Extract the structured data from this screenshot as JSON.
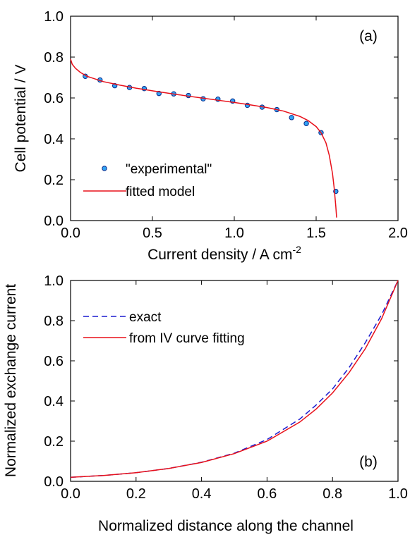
{
  "chart_data": [
    {
      "type": "scatter",
      "panel_label": "(a)",
      "xlabel": "Current density / A cm",
      "xlabel_sup": "-2",
      "ylabel": "Cell potential / V",
      "xlim": [
        0,
        2
      ],
      "ylim": [
        0,
        1
      ],
      "xticks": [
        "0.0",
        "0.5",
        "1.0",
        "1.5",
        "2.0"
      ],
      "yticks": [
        "0.0",
        "0.2",
        "0.4",
        "0.6",
        "0.8",
        "1.0"
      ],
      "legend_position": "bottom-left",
      "colors": {
        "points_fill": "#2fa3f5",
        "points_edge": "#0a2a8a",
        "model": "#e8101a"
      },
      "series": [
        {
          "name": "\"experimental\"",
          "kind": "points",
          "x": [
            0.09,
            0.18,
            0.27,
            0.36,
            0.45,
            0.54,
            0.63,
            0.72,
            0.81,
            0.9,
            0.99,
            1.08,
            1.17,
            1.26,
            1.35,
            1.44,
            1.53,
            1.62
          ],
          "y": [
            0.706,
            0.688,
            0.66,
            0.651,
            0.646,
            0.622,
            0.62,
            0.612,
            0.596,
            0.594,
            0.585,
            0.564,
            0.555,
            0.543,
            0.504,
            0.475,
            0.43,
            0.143
          ]
        },
        {
          "name": "fitted model",
          "kind": "line",
          "x": [
            0.0,
            0.01,
            0.03,
            0.06,
            0.1,
            0.2,
            0.3,
            0.4,
            0.5,
            0.6,
            0.7,
            0.8,
            0.9,
            1.0,
            1.1,
            1.2,
            1.3,
            1.4,
            1.45,
            1.5,
            1.53,
            1.56,
            1.58,
            1.6,
            1.61,
            1.62,
            1.625
          ],
          "y": [
            0.79,
            0.765,
            0.745,
            0.725,
            0.706,
            0.68,
            0.663,
            0.648,
            0.635,
            0.623,
            0.611,
            0.6,
            0.589,
            0.578,
            0.566,
            0.553,
            0.536,
            0.51,
            0.49,
            0.46,
            0.43,
            0.38,
            0.32,
            0.23,
            0.16,
            0.07,
            0.015
          ]
        }
      ]
    },
    {
      "type": "line",
      "panel_label": "(b)",
      "xlabel": "Normalized distance along the channel",
      "ylabel": "Normalized exchange current",
      "xlim": [
        0,
        1
      ],
      "ylim": [
        0,
        1
      ],
      "xticks": [
        "0.0",
        "0.2",
        "0.4",
        "0.6",
        "0.8",
        "1.0"
      ],
      "yticks": [
        "0.0",
        "0.2",
        "0.4",
        "0.6",
        "0.8",
        "1.0"
      ],
      "legend_position": "top-left",
      "colors": {
        "exact": "#1a1acf",
        "fit": "#e8101a"
      },
      "series": [
        {
          "name": "exact",
          "kind": "dashed",
          "x": [
            0,
            0.1,
            0.2,
            0.3,
            0.4,
            0.5,
            0.6,
            0.7,
            0.75,
            0.8,
            0.85,
            0.9,
            0.95,
            1.0
          ],
          "y": [
            0.02,
            0.029,
            0.043,
            0.064,
            0.095,
            0.14,
            0.208,
            0.31,
            0.38,
            0.46,
            0.565,
            0.69,
            0.83,
            1.0
          ]
        },
        {
          "name": "from IV curve fitting",
          "kind": "solid",
          "x": [
            0,
            0.1,
            0.2,
            0.3,
            0.4,
            0.5,
            0.6,
            0.7,
            0.75,
            0.8,
            0.85,
            0.9,
            0.95,
            1.0
          ],
          "y": [
            0.02,
            0.029,
            0.043,
            0.064,
            0.094,
            0.138,
            0.2,
            0.295,
            0.36,
            0.44,
            0.54,
            0.66,
            0.81,
            1.0
          ]
        }
      ]
    }
  ]
}
